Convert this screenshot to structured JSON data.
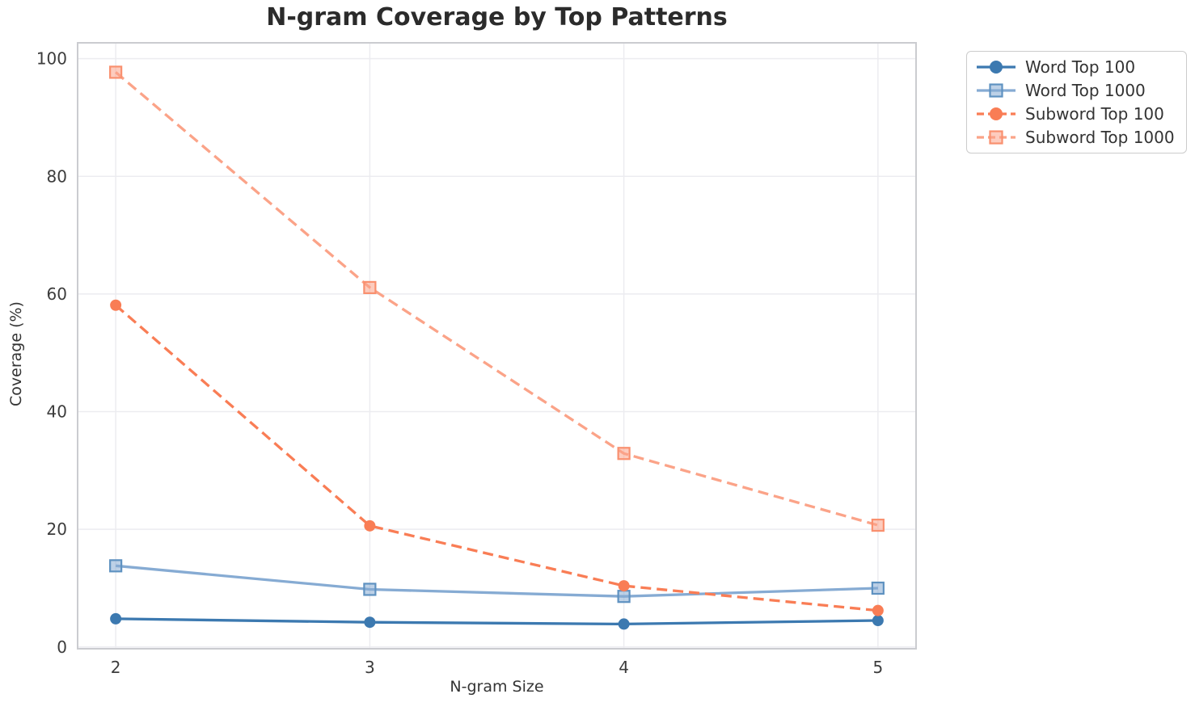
{
  "title": "N-gram Coverage by Top Patterns",
  "chart_data": {
    "type": "line",
    "title": "N-gram Coverage by Top Patterns",
    "xlabel": "N-gram Size",
    "ylabel": "Coverage (%)",
    "x": [
      2,
      3,
      4,
      5
    ],
    "xticks": [
      2,
      3,
      4,
      5
    ],
    "yticks": [
      0,
      20,
      40,
      60,
      80,
      100
    ],
    "xlim": [
      1.85,
      5.15
    ],
    "ylim": [
      -0.3,
      102.7
    ],
    "grid": true,
    "legend_position": "outside-right",
    "series": [
      {
        "name": "Word Top 100",
        "values": [
          4.8,
          4.2,
          3.9,
          4.5
        ],
        "color": "#3c79b0",
        "marker": "circle",
        "dash": false,
        "marker_edge": "#3c79b0"
      },
      {
        "name": "Word Top 1000",
        "values": [
          13.8,
          9.8,
          8.6,
          10.0
        ],
        "color": "#86abd3",
        "marker": "square",
        "dash": false,
        "marker_edge": "#5f92c1"
      },
      {
        "name": "Subword Top 100",
        "values": [
          58.1,
          20.6,
          10.4,
          6.2
        ],
        "color": "#f97d55",
        "marker": "circle",
        "dash": true,
        "marker_edge": "#f97d55"
      },
      {
        "name": "Subword Top 1000",
        "values": [
          97.7,
          61.1,
          32.9,
          20.7
        ],
        "color": "#fba388",
        "marker": "square",
        "dash": true,
        "marker_edge": "#f9906f"
      }
    ],
    "colors": {
      "grid": "#ececf0",
      "spine": "#cbccd0",
      "tick_label": "#3c3c3c",
      "background": "#ffffff"
    }
  }
}
